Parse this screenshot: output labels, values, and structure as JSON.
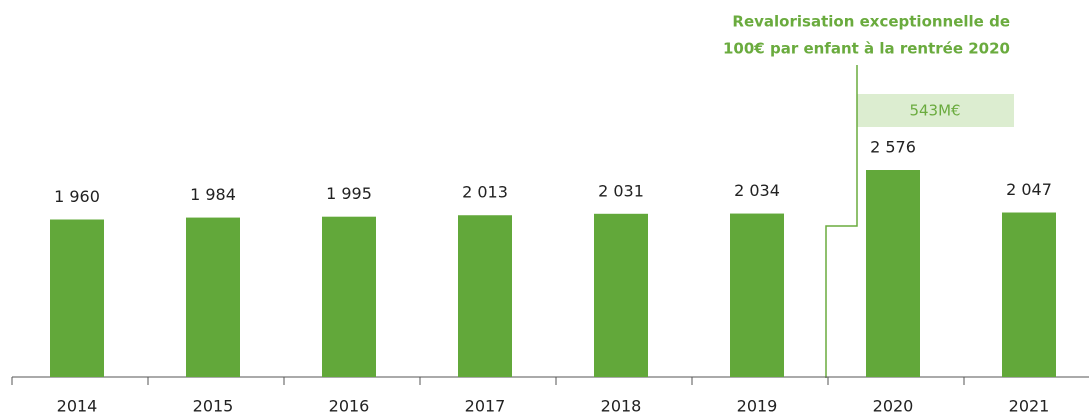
{
  "chart_data": {
    "type": "bar",
    "categories": [
      "2014",
      "2015",
      "2016",
      "2017",
      "2018",
      "2019",
      "2020",
      "2021"
    ],
    "values": [
      1960,
      1984,
      1995,
      2013,
      2031,
      2034,
      2576,
      2047
    ],
    "value_labels": [
      "1 960",
      "1 984",
      "1 995",
      "2 013",
      "2 031",
      "2 034",
      "2 576",
      "2 047"
    ],
    "color": "#62a83a",
    "annotation": [
      "Revalorisation exceptionnelle de",
      "100€ par enfant à la rentrée 2020"
    ],
    "box_label": "543M€"
  }
}
